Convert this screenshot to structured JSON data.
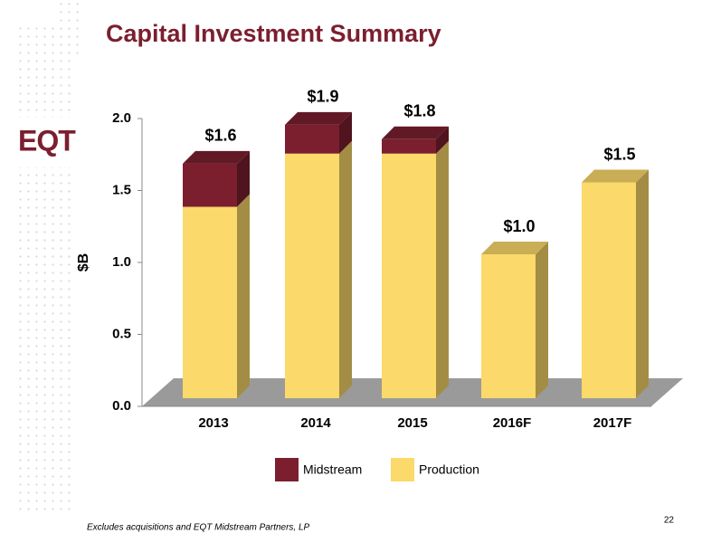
{
  "chart_data": {
    "type": "bar3d_stacked",
    "title": "Capital Investment Summary",
    "logo": "EQT",
    "y_label": "$B",
    "categories": [
      "2013",
      "2014",
      "2015",
      "2016F",
      "2017F"
    ],
    "series": [
      {
        "name": "Production",
        "color": "#fbd96a",
        "values": [
          1.33,
          1.7,
          1.7,
          1.0,
          1.5
        ]
      },
      {
        "name": "Midstream",
        "color": "#7b1f2f",
        "values": [
          0.3,
          0.2,
          0.1,
          0,
          0
        ]
      }
    ],
    "totals": [
      1.63,
      1.9,
      1.8,
      1.0,
      1.5
    ],
    "total_labels": [
      "$1.6",
      "$1.9",
      "$1.8",
      "$1.0",
      "$1.5"
    ],
    "ylim": [
      0,
      2
    ],
    "yticks": [
      {
        "value": 0,
        "label": "0.0"
      },
      {
        "value": 0.5,
        "label": "0.5"
      },
      {
        "value": 1,
        "label": "1.0"
      },
      {
        "value": 1.5,
        "label": "1.5"
      },
      {
        "value": 2,
        "label": "2.0"
      }
    ],
    "footnote": "Excludes acquisitions and EQT Midstream Partners, LP",
    "page_number": "22"
  }
}
